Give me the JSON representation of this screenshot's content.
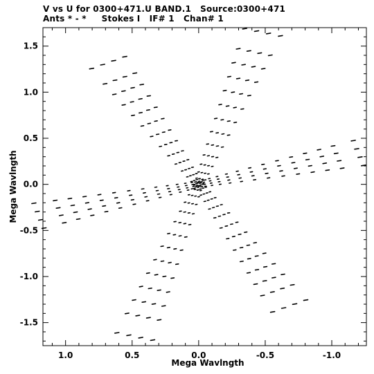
{
  "chart_data": {
    "type": "scatter",
    "title_line1": "V vs U for 0300+471.U BAND.1   Source:0300+471",
    "title_line2": "Ants * - *     Stokes I   IF# 1   Chan# 1",
    "xlabel": "Mega Wavlngth",
    "ylabel": "Mega Wavlngth",
    "xlim": [
      1.17,
      -1.26
    ],
    "ylim": [
      -1.75,
      1.7
    ],
    "xticks": [
      1.0,
      0.5,
      0.0,
      -0.5,
      -1.0
    ],
    "xtick_labels": [
      "1.0",
      "0.5",
      "0.0",
      "-0.5",
      "-1.0"
    ],
    "yticks": [
      1.5,
      1.0,
      0.5,
      0.0,
      -0.5,
      -1.0,
      -1.5
    ],
    "ytick_labels": [
      "1.5",
      "1.0",
      "0.5",
      "0.0",
      "-0.5",
      "-1.0",
      "-1.5"
    ],
    "grid": false,
    "marker_color": "#000000",
    "arms": [
      {
        "u_end": 0.68,
        "v_end": 1.32
      },
      {
        "u_end": -0.48,
        "v_end": 1.65
      },
      {
        "u_end": -1.2,
        "v_end": 0.34
      },
      {
        "u_end": -0.68,
        "v_end": -1.32
      },
      {
        "u_end": 0.48,
        "v_end": -1.65
      },
      {
        "u_end": 1.2,
        "v_end": -0.34
      }
    ]
  }
}
